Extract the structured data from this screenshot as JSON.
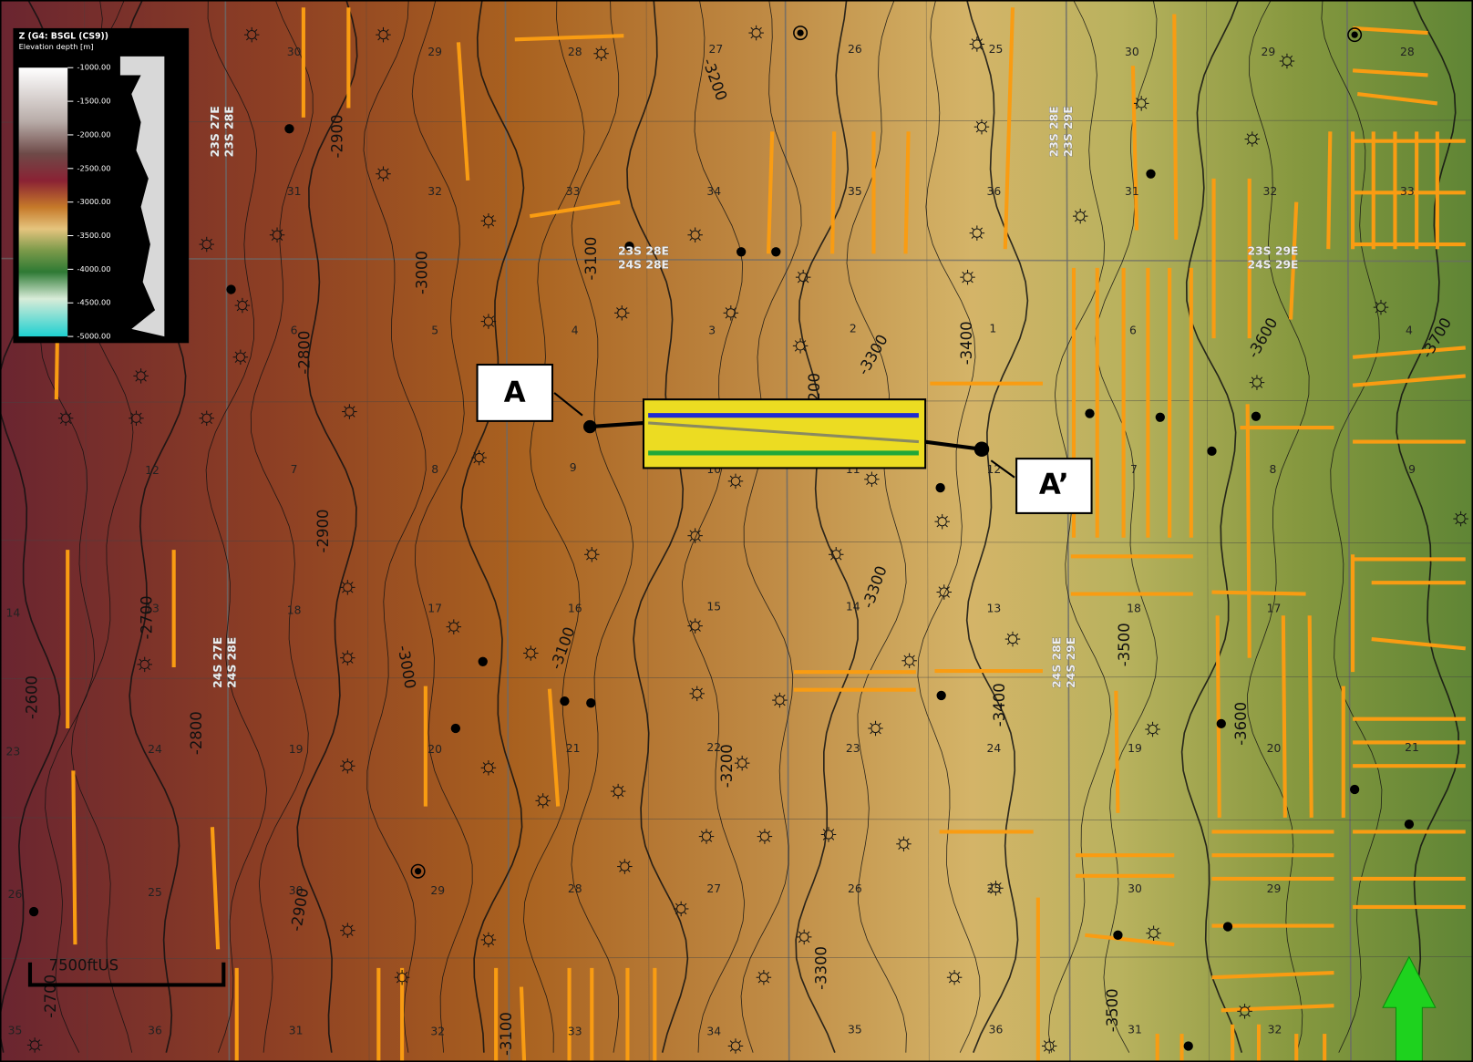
{
  "legend": {
    "title": "Z (G4: BSGL (CS9))",
    "subtitle": "Elevation depth [m]",
    "ticks": [
      "-1000.00",
      "-1500.00",
      "-2000.00",
      "-2500.00",
      "-3000.00",
      "-3500.00",
      "-4000.00",
      "-4500.00",
      "-5000.00"
    ]
  },
  "cross_section": {
    "start_label": "A",
    "end_label": "A’"
  },
  "scale_bar": "7500ftUS",
  "township_labels": [
    [
      "23S 27E",
      "23S 28E"
    ],
    [
      "23S 28E",
      "23S 29E"
    ],
    [
      "23S 28E",
      "24S 28E"
    ],
    [
      "23S 29E",
      "24S 29E"
    ],
    [
      "24S 27E",
      "24S 28E"
    ],
    [
      "24S 28E",
      "24S 29E"
    ]
  ],
  "section_numbers": [
    "30",
    "29",
    "28",
    "27",
    "26",
    "25",
    "30",
    "29",
    "28",
    "31",
    "32",
    "33",
    "34",
    "35",
    "36",
    "31",
    "32",
    "33",
    "6",
    "5",
    "4",
    "3",
    "2",
    "1",
    "6",
    "4",
    "12",
    "7",
    "8",
    "9",
    "10",
    "11",
    "12",
    "7",
    "8",
    "9",
    "14",
    "13",
    "18",
    "17",
    "16",
    "15",
    "14",
    "13",
    "18",
    "17",
    "23",
    "24",
    "19",
    "20",
    "21",
    "22",
    "23",
    "24",
    "19",
    "20",
    "21",
    "26",
    "25",
    "30",
    "29",
    "28",
    "27",
    "26",
    "25",
    "30",
    "29",
    "35",
    "36",
    "31",
    "32",
    "33",
    "34",
    "35",
    "36",
    "31",
    "32"
  ],
  "contour_labels": [
    "-2600",
    "-2700",
    "-2700",
    "-2800",
    "-2800",
    "-2900",
    "-2900",
    "-2900",
    "-3000",
    "-3000",
    "-3100",
    "-3100",
    "-3100",
    "-3200",
    "-3200",
    "-3200",
    "-3300",
    "-3300",
    "-3300",
    "-3400",
    "-3400",
    "-3500",
    "-3500",
    "-3600",
    "-3600",
    "-3700"
  ]
}
